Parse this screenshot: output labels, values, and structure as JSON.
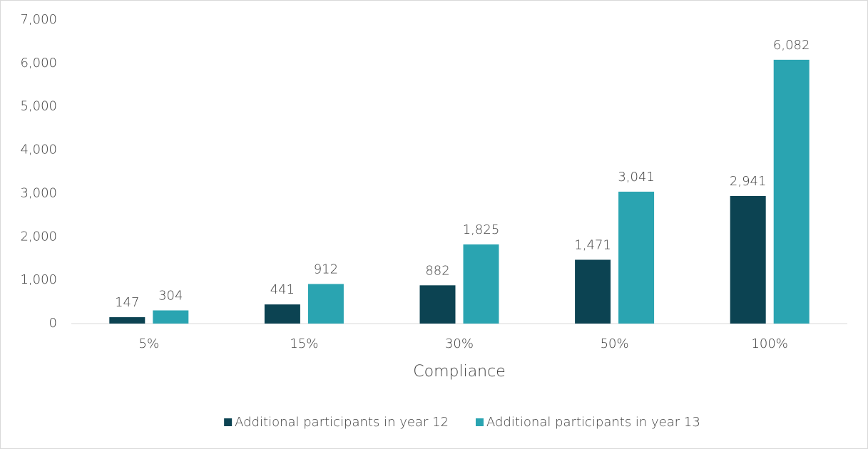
{
  "chart_data": {
    "type": "bar",
    "categories": [
      "5%",
      "15%",
      "30%",
      "50%",
      "100%"
    ],
    "x_label": "Compliance",
    "series": [
      {
        "name": "Additional participants in year 12",
        "color": "#0c4352",
        "values": [
          147,
          441,
          882,
          1471,
          2941
        ],
        "value_labels": [
          "147",
          "441",
          "882",
          "1,471",
          "2,941"
        ]
      },
      {
        "name": "Additional participants in year 13",
        "color": "#2aa4b1",
        "values": [
          304,
          912,
          1825,
          3041,
          6082
        ],
        "value_labels": [
          "304",
          "912",
          "1,825",
          "3,041",
          "6,082"
        ]
      }
    ],
    "ylim": [
      0,
      7000
    ],
    "yticks": [
      0,
      {
        "value": 1000,
        "label": "1,000"
      },
      {
        "value": 2000,
        "label": "2,000"
      },
      {
        "value": 3000,
        "label": "3,000"
      },
      {
        "value": 4000,
        "label": "4,000"
      },
      {
        "value": 5000,
        "label": "5,000"
      },
      {
        "value": 6000,
        "label": "6,000"
      },
      {
        "value": 7000,
        "label": "7,000"
      }
    ],
    "grid": false,
    "legend": "bottom"
  }
}
